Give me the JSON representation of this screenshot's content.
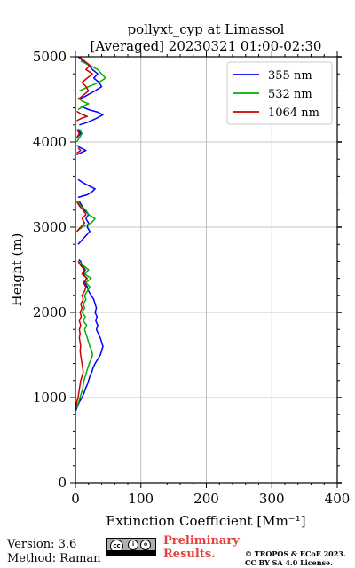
{
  "chart_data": {
    "type": "line",
    "title": "pollyxt_cyp at Limassol",
    "subtitle": "[Averaged] 20230321 01:00-02:30",
    "xlabel": "Extinction Coefficient [Mm⁻¹]",
    "ylabel": "Height (m)",
    "xlim": [
      0,
      400
    ],
    "ylim": [
      0,
      5000
    ],
    "xticks": [
      "0",
      "100",
      "200",
      "300",
      "400"
    ],
    "yticks": [
      "0",
      "1000",
      "2000",
      "3000",
      "4000",
      "5000"
    ],
    "grid": true,
    "legend_position": "top-right",
    "series": [
      {
        "name": "355 nm",
        "color": "#0000ff",
        "points": [
          [
            1,
            850
          ],
          [
            3,
            900
          ],
          [
            6,
            950
          ],
          [
            10,
            1000
          ],
          [
            13,
            1050
          ],
          [
            15,
            1100
          ],
          [
            18,
            1150
          ],
          [
            20,
            1200
          ],
          [
            22,
            1250
          ],
          [
            25,
            1300
          ],
          [
            27,
            1350
          ],
          [
            30,
            1400
          ],
          [
            34,
            1450
          ],
          [
            38,
            1500
          ],
          [
            40,
            1550
          ],
          [
            42,
            1600
          ],
          [
            40,
            1650
          ],
          [
            38,
            1700
          ],
          [
            35,
            1750
          ],
          [
            32,
            1800
          ],
          [
            34,
            1850
          ],
          [
            31,
            1900
          ],
          [
            33,
            1950
          ],
          [
            30,
            2000
          ],
          [
            32,
            2050
          ],
          [
            30,
            2100
          ],
          [
            28,
            2150
          ],
          [
            24,
            2200
          ],
          [
            20,
            2250
          ],
          [
            18,
            2300
          ],
          [
            14,
            2350
          ],
          [
            17,
            2400
          ],
          [
            12,
            2450
          ],
          [
            15,
            2500
          ],
          [
            10,
            2550
          ],
          [
            8,
            2600
          ],
          [
            5,
            2620
          ],
          [
            null,
            null
          ],
          [
            4,
            2800
          ],
          [
            10,
            2850
          ],
          [
            16,
            2900
          ],
          [
            22,
            2950
          ],
          [
            18,
            3000
          ],
          [
            20,
            3050
          ],
          [
            16,
            3100
          ],
          [
            20,
            3150
          ],
          [
            14,
            3200
          ],
          [
            10,
            3250
          ],
          [
            6,
            3300
          ],
          [
            null,
            null
          ],
          [
            4,
            3350
          ],
          [
            18,
            3380
          ],
          [
            26,
            3420
          ],
          [
            30,
            3450
          ],
          [
            22,
            3480
          ],
          [
            12,
            3520
          ],
          [
            4,
            3560
          ],
          [
            null,
            null
          ],
          [
            2,
            3850
          ],
          [
            10,
            3880
          ],
          [
            16,
            3900
          ],
          [
            8,
            3930
          ],
          [
            2,
            3960
          ],
          [
            null,
            null
          ],
          [
            2,
            4050
          ],
          [
            8,
            4100
          ],
          [
            4,
            4150
          ],
          [
            null,
            null
          ],
          [
            6,
            4200
          ],
          [
            18,
            4230
          ],
          [
            30,
            4270
          ],
          [
            42,
            4320
          ],
          [
            34,
            4350
          ],
          [
            20,
            4380
          ],
          [
            8,
            4420
          ],
          [
            null,
            null
          ],
          [
            6,
            4500
          ],
          [
            18,
            4550
          ],
          [
            30,
            4600
          ],
          [
            40,
            4650
          ],
          [
            36,
            4700
          ],
          [
            28,
            4750
          ],
          [
            34,
            4800
          ],
          [
            26,
            4850
          ],
          [
            20,
            4900
          ],
          [
            12,
            4950
          ],
          [
            4,
            5000
          ]
        ]
      },
      {
        "name": "532 nm",
        "color": "#00b000",
        "points": [
          [
            0,
            850
          ],
          [
            2,
            900
          ],
          [
            5,
            950
          ],
          [
            7,
            1000
          ],
          [
            9,
            1050
          ],
          [
            11,
            1100
          ],
          [
            12,
            1150
          ],
          [
            13,
            1200
          ],
          [
            15,
            1250
          ],
          [
            17,
            1300
          ],
          [
            19,
            1350
          ],
          [
            21,
            1400
          ],
          [
            24,
            1450
          ],
          [
            26,
            1500
          ],
          [
            25,
            1550
          ],
          [
            22,
            1600
          ],
          [
            20,
            1650
          ],
          [
            18,
            1700
          ],
          [
            16,
            1750
          ],
          [
            14,
            1800
          ],
          [
            17,
            1850
          ],
          [
            12,
            1900
          ],
          [
            15,
            1950
          ],
          [
            10,
            2000
          ],
          [
            14,
            2050
          ],
          [
            12,
            2100
          ],
          [
            16,
            2150
          ],
          [
            14,
            2200
          ],
          [
            18,
            2250
          ],
          [
            22,
            2300
          ],
          [
            16,
            2350
          ],
          [
            24,
            2400
          ],
          [
            14,
            2450
          ],
          [
            20,
            2500
          ],
          [
            12,
            2550
          ],
          [
            6,
            2600
          ],
          [
            null,
            null
          ],
          [
            2,
            2950
          ],
          [
            10,
            3000
          ],
          [
            24,
            3050
          ],
          [
            30,
            3100
          ],
          [
            20,
            3150
          ],
          [
            16,
            3200
          ],
          [
            8,
            3250
          ],
          [
            4,
            3300
          ],
          [
            null,
            null
          ],
          [
            2,
            4000
          ],
          [
            6,
            4050
          ],
          [
            10,
            4100
          ],
          [
            6,
            4150
          ],
          [
            null,
            null
          ],
          [
            4,
            4380
          ],
          [
            12,
            4420
          ],
          [
            20,
            4450
          ],
          [
            10,
            4480
          ],
          [
            4,
            4520
          ],
          [
            null,
            null
          ],
          [
            6,
            4600
          ],
          [
            20,
            4650
          ],
          [
            36,
            4700
          ],
          [
            46,
            4750
          ],
          [
            40,
            4800
          ],
          [
            34,
            4850
          ],
          [
            22,
            4900
          ],
          [
            8,
            4950
          ]
        ]
      },
      {
        "name": "1064 nm",
        "color": "#cc0000",
        "points": [
          [
            0,
            850
          ],
          [
            1,
            900
          ],
          [
            2,
            950
          ],
          [
            4,
            1000
          ],
          [
            5,
            1050
          ],
          [
            6,
            1100
          ],
          [
            7,
            1150
          ],
          [
            8,
            1200
          ],
          [
            10,
            1250
          ],
          [
            12,
            1300
          ],
          [
            11,
            1350
          ],
          [
            10,
            1400
          ],
          [
            9,
            1450
          ],
          [
            8,
            1500
          ],
          [
            7,
            1550
          ],
          [
            8,
            1600
          ],
          [
            7,
            1650
          ],
          [
            6,
            1700
          ],
          [
            7,
            1750
          ],
          [
            6,
            1800
          ],
          [
            8,
            1850
          ],
          [
            6,
            1900
          ],
          [
            9,
            1950
          ],
          [
            7,
            2000
          ],
          [
            10,
            2050
          ],
          [
            8,
            2100
          ],
          [
            12,
            2150
          ],
          [
            10,
            2200
          ],
          [
            14,
            2250
          ],
          [
            16,
            2300
          ],
          [
            12,
            2350
          ],
          [
            18,
            2400
          ],
          [
            10,
            2450
          ],
          [
            14,
            2500
          ],
          [
            8,
            2550
          ],
          [
            4,
            2600
          ],
          [
            null,
            null
          ],
          [
            2,
            2950
          ],
          [
            8,
            3000
          ],
          [
            14,
            3050
          ],
          [
            10,
            3100
          ],
          [
            16,
            3150
          ],
          [
            12,
            3200
          ],
          [
            6,
            3250
          ],
          [
            2,
            3300
          ],
          [
            null,
            null
          ],
          [
            2,
            3870
          ],
          [
            8,
            3900
          ],
          [
            4,
            3930
          ],
          [
            null,
            null
          ],
          [
            2,
            4050
          ],
          [
            6,
            4100
          ],
          [
            2,
            4150
          ],
          [
            null,
            null
          ],
          [
            2,
            4250
          ],
          [
            10,
            4280
          ],
          [
            18,
            4300
          ],
          [
            8,
            4330
          ],
          [
            2,
            4360
          ],
          [
            null,
            null
          ],
          [
            4,
            4500
          ],
          [
            12,
            4550
          ],
          [
            20,
            4600
          ],
          [
            16,
            4650
          ],
          [
            10,
            4700
          ],
          [
            18,
            4750
          ],
          [
            26,
            4800
          ],
          [
            16,
            4850
          ],
          [
            22,
            4900
          ],
          [
            14,
            4950
          ],
          [
            6,
            5000
          ]
        ]
      }
    ]
  },
  "footer": {
    "version": "Version: 3.6",
    "method": "Method: Raman",
    "preliminary_line1": "Preliminary",
    "preliminary_line2": "Results.",
    "copyright_line1": "© TROPOS & ECoE 2023.",
    "copyright_line2": "CC BY SA 4.0 License.",
    "license_badge_icon": "cc-by-sa-icon"
  }
}
